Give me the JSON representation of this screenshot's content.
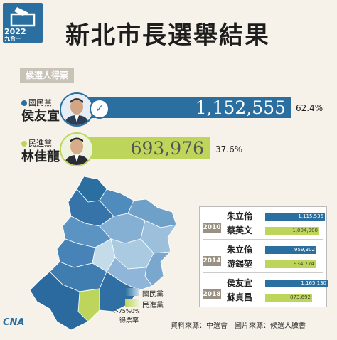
{
  "header": {
    "logo_year": "2022",
    "logo_sub": "九合一",
    "title": "新北市長選舉結果"
  },
  "section_tag": "候選人得票",
  "candidates": [
    {
      "party": "國民黨",
      "name": "侯友宜",
      "votes": 1152555,
      "votes_label": "1,152,555",
      "pct_label": "62.4%",
      "color": "#2a6fa0",
      "winner_mark": "✓"
    },
    {
      "party": "民進黨",
      "name": "林佳龍",
      "votes": 693976,
      "votes_label": "693,976",
      "pct_label": "37.6%",
      "color": "#bcd55a"
    }
  ],
  "legend": {
    "kmt_label": "國民黨",
    "dpp_label": "民進黨",
    "scale_high": ">75%",
    "scale_low": "0%",
    "scale_title": "得票率",
    "kmt_color": "#2a6fa0",
    "dpp_color": "#bcd55a"
  },
  "chart_data": {
    "type": "bar",
    "title": "新北市長選舉結果",
    "categories": [
      "侯友宜",
      "林佳龍"
    ],
    "values": [
      1152555,
      693976
    ],
    "percentages": [
      62.4,
      37.6
    ],
    "history": [
      {
        "year": "2010",
        "rows": [
          {
            "name": "朱立倫",
            "value": 1115536,
            "label": "1,115,536",
            "party": "kmt"
          },
          {
            "name": "蔡英文",
            "value": 1004900,
            "label": "1,004,900",
            "party": "dpp"
          }
        ]
      },
      {
        "year": "2014",
        "rows": [
          {
            "name": "朱立倫",
            "value": 959302,
            "label": "959,302",
            "party": "kmt"
          },
          {
            "name": "游錫堃",
            "value": 934774,
            "label": "934,774",
            "party": "dpp"
          }
        ]
      },
      {
        "year": "2018",
        "rows": [
          {
            "name": "侯友宜",
            "value": 1165130,
            "label": "1,165,130",
            "party": "kmt"
          },
          {
            "name": "蘇貞昌",
            "value": 873692,
            "label": "873,692",
            "party": "dpp"
          }
        ]
      }
    ]
  },
  "source": "資料來源：中選會　圖片來源：候選人臉書",
  "brand": "CNA"
}
